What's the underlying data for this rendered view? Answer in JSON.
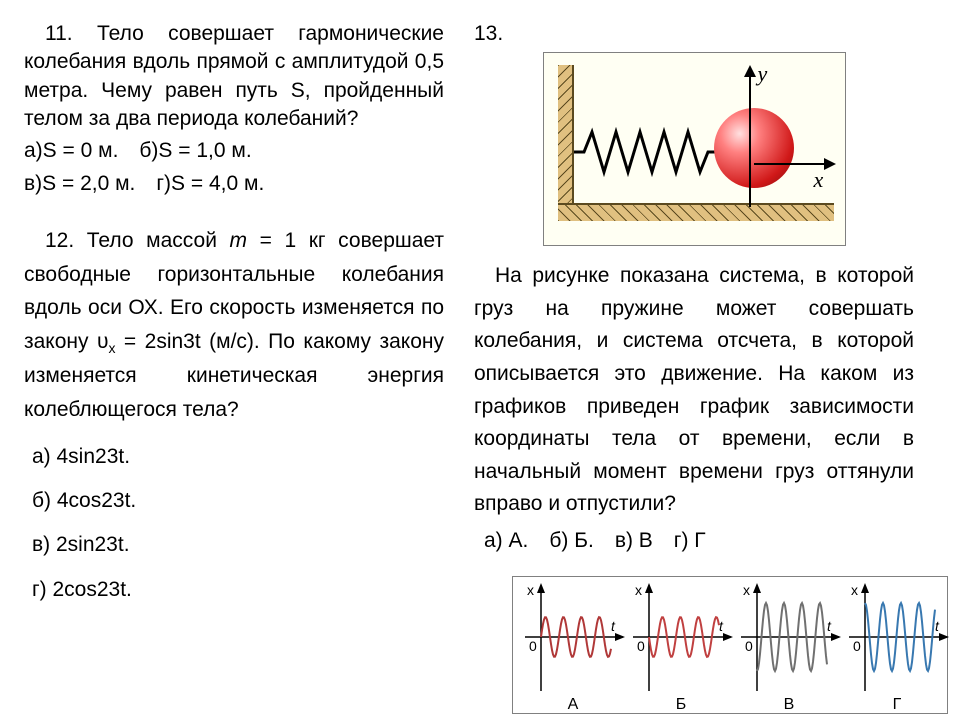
{
  "q11": {
    "text": "11. Тело совершает гармонические колебания вдоль прямой с амплитудой 0,5 метра. Чему равен путь S, пройденный телом за два периода колебаний?",
    "line1": "а)S = 0 м. б)S = 1,0 м.",
    "line2": "в)S = 2,0 м. г)S = 4,0 м."
  },
  "q12": {
    "p1a": "12. Тело массой ",
    "p1b": "m",
    "p1c": " = 1 кг совершает свободные горизонтальные колебания вдоль оси ОХ. Его скорость изменяется по закону υ",
    "p1sub": "x",
    "p1d": " = 2sin3t (м/c). По какому закону изменяется кинетическая энергия колеблющегося тела?",
    "a": "а) 4sin23t.",
    "b": "б) 4cos23t.",
    "c": "в) 2sin23t.",
    "d": "г) 2cos23t."
  },
  "q13": {
    "num": "13.",
    "text": "На рисунке показана система, в которой груз на пружине может совершать колебания, и система отсчета, в которой описывается это движение. На каком из графиков приведен график зависимости координаты тела от времени, если в начальный момент времени груз оттянули вправо и отпустили?",
    "opts": "а) А. б) Б. в) В г) Г",
    "ylabel": "y",
    "xlabel": "x"
  },
  "graphs": {
    "labels": [
      "А",
      "Б",
      "В",
      "Г"
    ],
    "colors": [
      "#b03838",
      "#c04040",
      "#707070",
      "#3878b0"
    ],
    "zero": "0",
    "t": "t",
    "x": "x",
    "phases": [
      0,
      3.1416,
      -1.5708,
      1.5708
    ]
  }
}
